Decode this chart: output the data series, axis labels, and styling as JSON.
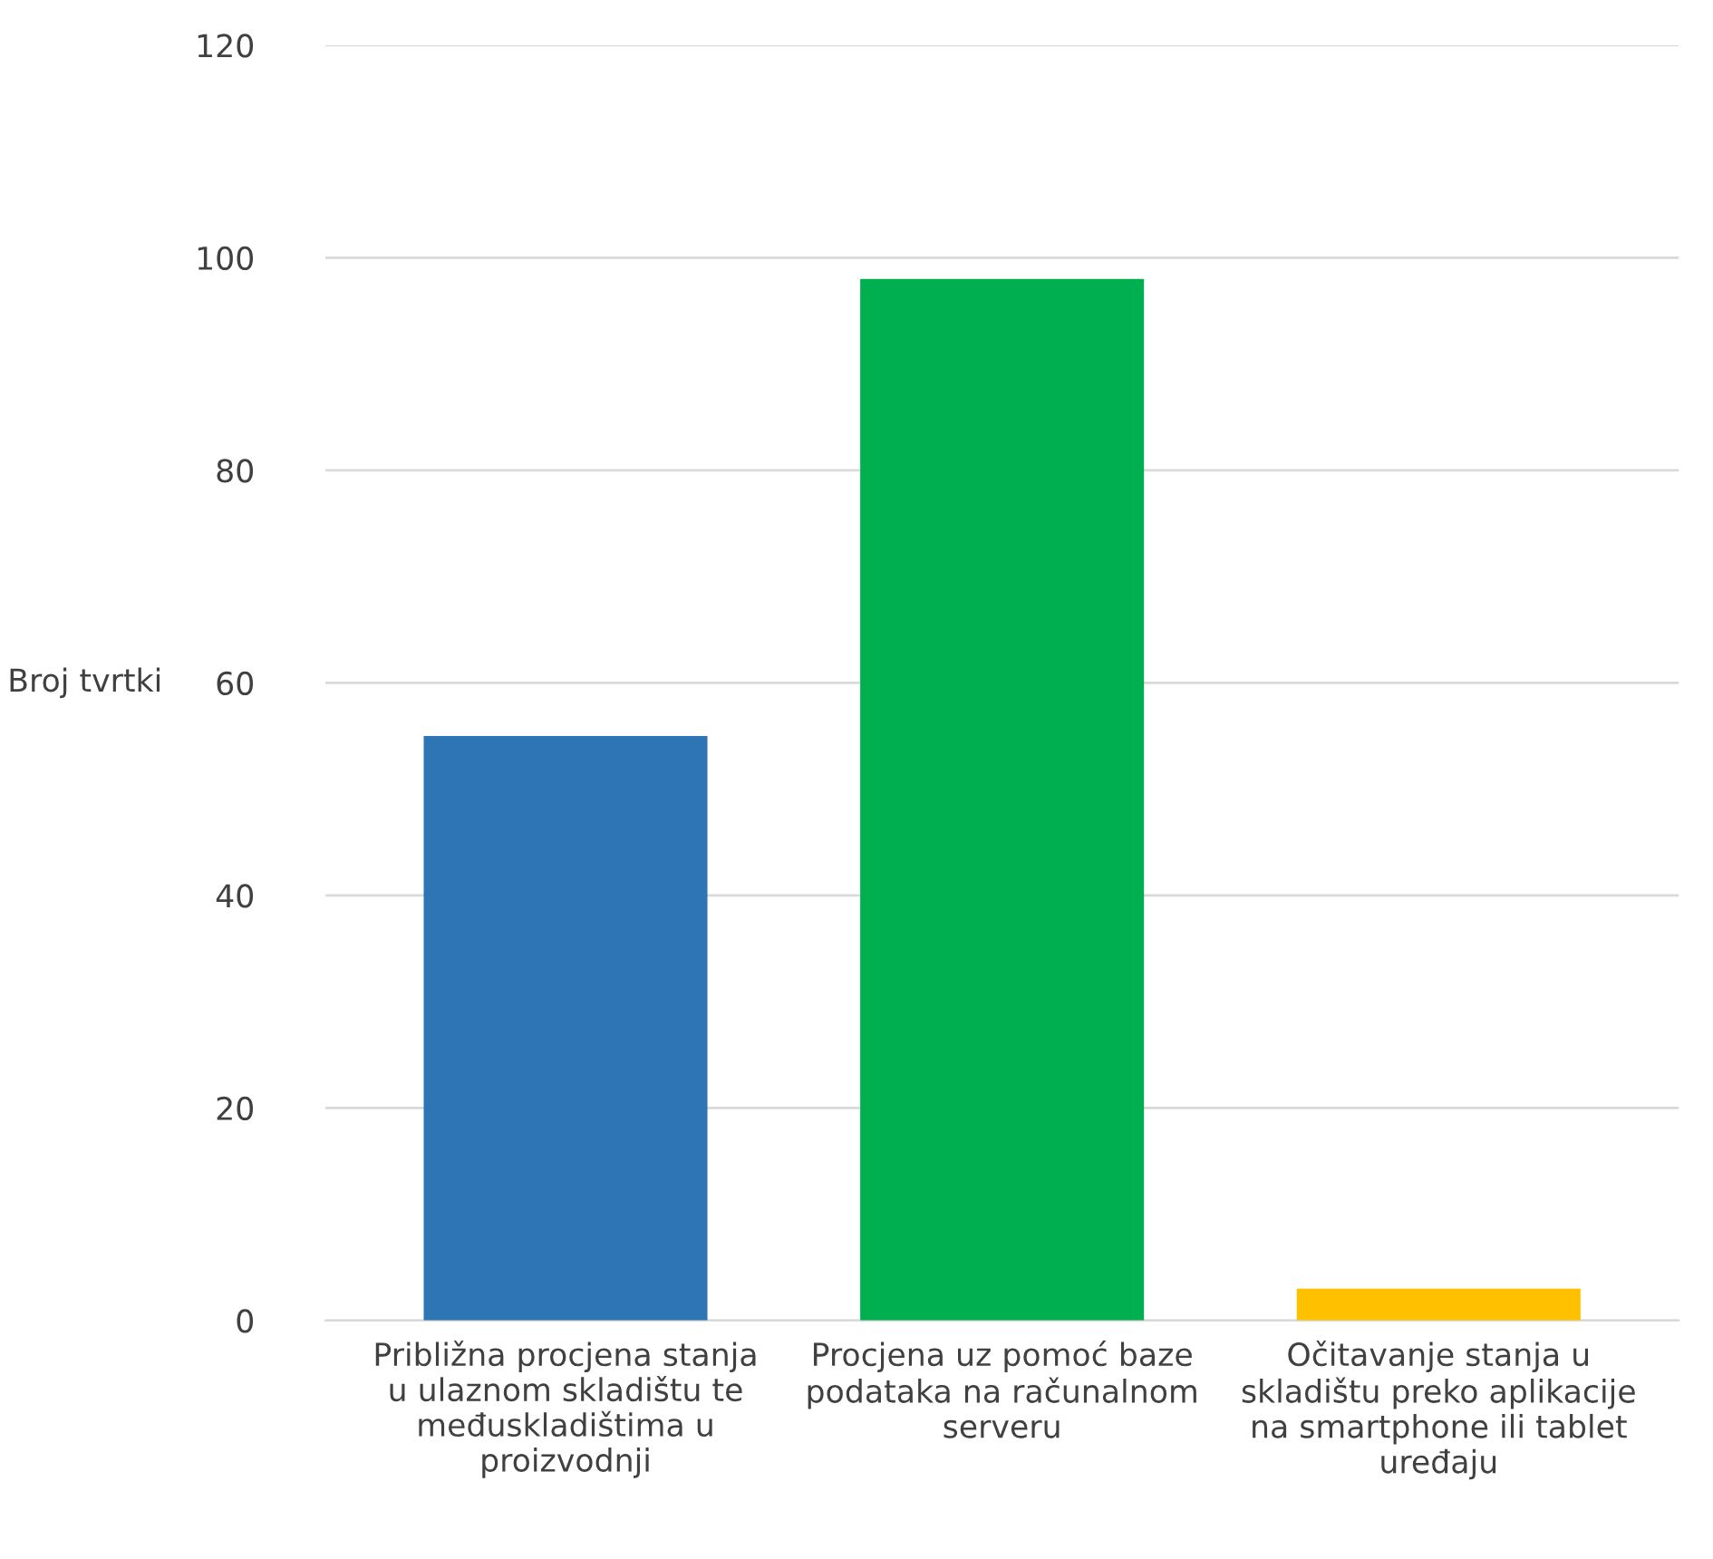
{
  "chart_data": {
    "type": "bar",
    "ylabel": "Broj tvrtki",
    "categories": [
      "Približna procjena stanja\nu ulaznom skladištu te\nmeđuskladištima u\nproizvodnji",
      "Procjena uz pomoć baze\npodataka na računalnom\nserveru",
      "Očitavanje stanja u\nskladištu preko aplikacije\nna smartphone ili tablet\nuređaju"
    ],
    "values": [
      55,
      98,
      3
    ],
    "colors": [
      "#2e75b6",
      "#00b050",
      "#ffc000"
    ],
    "ylim": [
      0,
      120
    ],
    "yticks": [
      0,
      20,
      40,
      60,
      80,
      100,
      120
    ],
    "grid": "y"
  }
}
